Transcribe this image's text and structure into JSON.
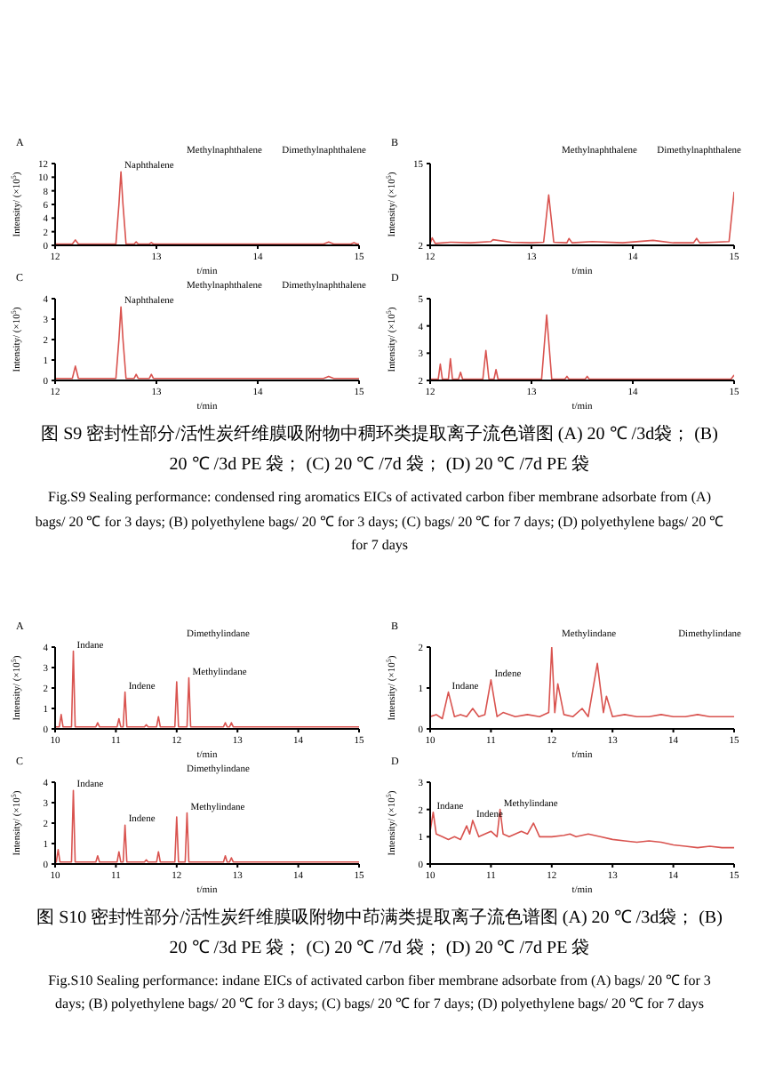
{
  "chart_data": [
    {
      "type": "line",
      "title": "A",
      "xlabel": "t/min",
      "ylabel": "Intensity/ (×10$^{5}$)",
      "color": "#d9534f",
      "xlim": [
        12,
        15
      ],
      "xticks": [
        12,
        13,
        14,
        15
      ],
      "ylim": [
        0,
        12
      ],
      "yticks": [
        0,
        2,
        4,
        6,
        8,
        10,
        12
      ],
      "x": [
        12,
        12.1,
        12.17,
        12.2,
        12.23,
        12.4,
        12.6,
        12.63,
        12.65,
        12.67,
        12.7,
        12.78,
        12.8,
        12.82,
        12.93,
        12.95,
        12.97,
        13.3,
        13.7,
        14.2,
        14.65,
        14.7,
        14.75,
        14.92,
        14.95,
        14.98,
        15
      ],
      "values": [
        0.2,
        0.2,
        0.2,
        0.8,
        0.2,
        0.2,
        0.2,
        6,
        10.8,
        6,
        0.2,
        0.2,
        0.5,
        0.2,
        0.2,
        0.4,
        0.2,
        0.2,
        0.2,
        0.2,
        0.2,
        0.5,
        0.2,
        0.2,
        0.4,
        0.2,
        0.2
      ],
      "annotations": [
        {
          "text": "Naphthalene",
          "x": 12.65,
          "y": 10.8
        },
        "Methylnaphthalene",
        "Dimethylnaphthalene"
      ]
    },
    {
      "type": "line",
      "title": "B",
      "xlabel": "t/min",
      "ylabel": "Intensity/ (×10$^{5}$)",
      "color": "#d9534f",
      "xlim": [
        12,
        15
      ],
      "xticks": [
        12,
        13,
        14,
        15
      ],
      "ylim": [
        2,
        15
      ],
      "yticks": [
        2,
        15
      ],
      "x": [
        12,
        12.02,
        12.05,
        12.2,
        12.4,
        12.6,
        12.62,
        12.8,
        13,
        13.12,
        13.17,
        13.22,
        13.35,
        13.37,
        13.4,
        13.6,
        13.9,
        14.2,
        14.4,
        14.6,
        14.63,
        14.66,
        14.8,
        14.95,
        15
      ],
      "values": [
        2.3,
        3.2,
        2.3,
        2.5,
        2.4,
        2.6,
        2.9,
        2.5,
        2.4,
        2.5,
        10,
        2.5,
        2.4,
        3.1,
        2.4,
        2.6,
        2.4,
        2.8,
        2.4,
        2.4,
        3.1,
        2.4,
        2.5,
        2.6,
        10.5
      ],
      "annotations": [
        "Methylnaphthalene",
        "Dimethylnaphthalene"
      ]
    },
    {
      "type": "line",
      "title": "C",
      "xlabel": "t/min",
      "ylabel": "Intensity/ (×10$^{5}$)",
      "color": "#d9534f",
      "xlim": [
        12,
        15
      ],
      "xticks": [
        12,
        13,
        14,
        15
      ],
      "ylim": [
        0,
        4
      ],
      "yticks": [
        0,
        1,
        2,
        3,
        4
      ],
      "x": [
        12,
        12.1,
        12.17,
        12.2,
        12.23,
        12.4,
        12.6,
        12.63,
        12.65,
        12.67,
        12.7,
        12.78,
        12.8,
        12.82,
        12.93,
        12.95,
        12.97,
        13.3,
        13.7,
        14.2,
        14.65,
        14.7,
        14.75,
        14.92,
        14.95,
        15
      ],
      "values": [
        0.1,
        0.1,
        0.1,
        0.7,
        0.1,
        0.1,
        0.1,
        2,
        3.6,
        2,
        0.1,
        0.1,
        0.3,
        0.1,
        0.1,
        0.3,
        0.1,
        0.1,
        0.1,
        0.1,
        0.1,
        0.2,
        0.1,
        0.1,
        0.1,
        0.1
      ],
      "annotations": [
        {
          "text": "Naphthalene",
          "x": 12.65,
          "y": 3.6
        },
        "Methylnaphthalene",
        "Dimethylnaphthalene"
      ]
    },
    {
      "type": "line",
      "title": "D",
      "xlabel": "t/min",
      "ylabel": "Intensity/ (×10$^{5}$)",
      "color": "#d9534f",
      "xlim": [
        12,
        15
      ],
      "xticks": [
        12,
        13,
        14,
        15
      ],
      "ylim": [
        2,
        5
      ],
      "yticks": [
        2,
        3,
        4,
        5
      ],
      "x": [
        12,
        12.08,
        12.1,
        12.12,
        12.18,
        12.2,
        12.22,
        12.28,
        12.3,
        12.32,
        12.52,
        12.55,
        12.58,
        12.63,
        12.65,
        12.67,
        13.1,
        13.15,
        13.2,
        13.33,
        13.35,
        13.37,
        13.53,
        13.55,
        13.57,
        14.3,
        14.97,
        15
      ],
      "values": [
        2.05,
        2.05,
        2.6,
        2.05,
        2.05,
        2.8,
        2.05,
        2.05,
        2.3,
        2.05,
        2.05,
        3.1,
        2.05,
        2.05,
        2.4,
        2.05,
        2.05,
        4.4,
        2.05,
        2.05,
        2.15,
        2.05,
        2.05,
        2.15,
        2.05,
        2.05,
        2.05,
        2.2
      ]
    },
    {
      "type": "other",
      "annotations": [
        "图 S9 密封性部分/活性炭纤维膜吸附物中稠环类提取离子流色谱图 (A) 20 ℃ /3d袋； (B) 20 ℃ /3d PE 袋； (C) 20 ℃ /7d 袋； (D) 20 ℃ /7d PE 袋",
        "Fig.S9 Sealing performance: condensed ring aromatics EICs of activated carbon fiber membrane adsorbate from (A) bags/ 20 ℃ for 3 days; (B) polyethylene bags/ 20 ℃ for 3 days; (C) bags/ 20 ℃ for 7 days; (D) polyethylene bags/ 20 ℃ for 7 days"
      ]
    },
    {
      "type": "line",
      "title": "A",
      "xlabel": "t/min",
      "ylabel": "Intensity/ (×10$^{5}$)",
      "color": "#d9534f",
      "xlim": [
        10,
        15
      ],
      "xticks": [
        10,
        11,
        12,
        13,
        14,
        15
      ],
      "ylim": [
        0,
        4
      ],
      "yticks": [
        0,
        1,
        2,
        3,
        4
      ],
      "x": [
        10,
        10.07,
        10.1,
        10.13,
        10.27,
        10.3,
        10.33,
        10.67,
        10.7,
        10.73,
        11.02,
        11.05,
        11.08,
        11.12,
        11.15,
        11.18,
        11.47,
        11.5,
        11.53,
        11.67,
        11.7,
        11.73,
        11.97,
        12,
        12.03,
        12.17,
        12.2,
        12.23,
        12.77,
        12.8,
        12.83,
        12.87,
        12.9,
        12.93,
        13.5,
        14.2,
        15
      ],
      "values": [
        0.1,
        0.1,
        0.7,
        0.1,
        0.1,
        3.8,
        0.1,
        0.1,
        0.3,
        0.1,
        0.1,
        0.5,
        0.1,
        0.1,
        1.8,
        0.1,
        0.1,
        0.2,
        0.1,
        0.1,
        0.6,
        0.1,
        0.1,
        2.3,
        0.1,
        0.1,
        2.5,
        0.1,
        0.1,
        0.3,
        0.1,
        0.1,
        0.3,
        0.1,
        0.1,
        0.1,
        0.1
      ],
      "annotations": [
        {
          "text": "Indane",
          "x": 10.3,
          "y": 3.8
        },
        {
          "text": "Indene",
          "x": 11.15,
          "y": 1.8
        },
        {
          "text": "Methylindane",
          "x": 12.2,
          "y": 2.5
        },
        "Dimethylindane"
      ]
    },
    {
      "type": "line",
      "title": "B",
      "xlabel": "t/min",
      "ylabel": "Intensity/ (×10$^{5}$)",
      "color": "#d9534f",
      "xlim": [
        10,
        15
      ],
      "xticks": [
        10,
        11,
        12,
        13,
        14,
        15
      ],
      "ylim": [
        0,
        2
      ],
      "yticks": [
        0,
        1,
        2
      ],
      "x": [
        10,
        10.1,
        10.2,
        10.3,
        10.4,
        10.5,
        10.6,
        10.7,
        10.8,
        10.9,
        11,
        11.1,
        11.2,
        11.4,
        11.6,
        11.8,
        11.95,
        12,
        12.05,
        12.1,
        12.2,
        12.35,
        12.5,
        12.6,
        12.75,
        12.85,
        12.9,
        13,
        13.2,
        13.4,
        13.6,
        13.8,
        14,
        14.2,
        14.4,
        14.6,
        14.8,
        15
      ],
      "values": [
        0.3,
        0.35,
        0.25,
        0.9,
        0.3,
        0.35,
        0.3,
        0.5,
        0.3,
        0.35,
        1.2,
        0.3,
        0.4,
        0.3,
        0.35,
        0.3,
        0.4,
        2,
        0.4,
        1.1,
        0.35,
        0.3,
        0.5,
        0.3,
        1.6,
        0.4,
        0.8,
        0.3,
        0.35,
        0.3,
        0.3,
        0.35,
        0.3,
        0.3,
        0.35,
        0.3,
        0.3,
        0.3
      ],
      "annotations": [
        {
          "text": "Indane",
          "x": 10.3,
          "y": 0.9
        },
        {
          "text": "Indene",
          "x": 11,
          "y": 1.2
        },
        "Methylindane",
        "Dimethylindane"
      ]
    },
    {
      "type": "line",
      "title": "C",
      "xlabel": "t/min",
      "ylabel": "Intensity/ (×10$^{5}$)",
      "color": "#d9534f",
      "xlim": [
        10,
        15
      ],
      "xticks": [
        10,
        11,
        12,
        13,
        14,
        15
      ],
      "ylim": [
        0,
        4
      ],
      "yticks": [
        0,
        1,
        2,
        3,
        4
      ],
      "x": [
        10,
        10.02,
        10.05,
        10.08,
        10.27,
        10.3,
        10.33,
        10.67,
        10.7,
        10.73,
        11.02,
        11.05,
        11.08,
        11.12,
        11.15,
        11.18,
        11.47,
        11.5,
        11.53,
        11.67,
        11.7,
        11.73,
        11.97,
        12,
        12.03,
        12.14,
        12.17,
        12.2,
        12.77,
        12.8,
        12.83,
        12.87,
        12.9,
        12.93,
        13.5,
        14.2,
        15
      ],
      "values": [
        0.1,
        0.1,
        0.7,
        0.1,
        0.1,
        3.6,
        0.1,
        0.1,
        0.4,
        0.1,
        0.1,
        0.6,
        0.1,
        0.1,
        1.9,
        0.1,
        0.1,
        0.2,
        0.1,
        0.1,
        0.6,
        0.1,
        0.1,
        2.3,
        0.1,
        0.1,
        2.5,
        0.1,
        0.1,
        0.4,
        0.1,
        0.1,
        0.3,
        0.1,
        0.1,
        0.1,
        0.1
      ],
      "annotations": [
        {
          "text": "Indane",
          "x": 10.3,
          "y": 3.6
        },
        {
          "text": "Indene",
          "x": 11.15,
          "y": 1.9
        },
        {
          "text": "Methylindane",
          "x": 12.17,
          "y": 2.5
        },
        "Dimethylindane"
      ]
    },
    {
      "type": "line",
      "title": "D",
      "xlabel": "t/min",
      "ylabel": "Intensity/ (×10$^{5}$)",
      "color": "#d9534f",
      "xlim": [
        10,
        15
      ],
      "xticks": [
        10,
        11,
        12,
        13,
        14,
        15
      ],
      "ylim": [
        0,
        3
      ],
      "yticks": [
        0,
        1,
        2,
        3
      ],
      "x": [
        10,
        10.05,
        10.1,
        10.2,
        10.3,
        10.4,
        10.5,
        10.6,
        10.65,
        10.7,
        10.8,
        10.9,
        11,
        11.1,
        11.15,
        11.2,
        11.3,
        11.5,
        11.6,
        11.7,
        11.8,
        12,
        12.2,
        12.3,
        12.4,
        12.6,
        12.8,
        13,
        13.2,
        13.4,
        13.6,
        13.8,
        14,
        14.2,
        14.4,
        14.6,
        14.8,
        15
      ],
      "values": [
        1.2,
        1.9,
        1.1,
        1,
        0.9,
        1,
        0.9,
        1.4,
        1.1,
        1.6,
        1,
        1.1,
        1.2,
        1,
        2,
        1.1,
        1,
        1.2,
        1.1,
        1.5,
        1,
        1,
        1.05,
        1.1,
        1,
        1.1,
        1,
        0.9,
        0.85,
        0.8,
        0.85,
        0.8,
        0.7,
        0.65,
        0.6,
        0.65,
        0.6,
        0.6
      ],
      "annotations": [
        {
          "text": "Indane",
          "x": 10.05,
          "y": 1.9
        },
        {
          "text": "Indene",
          "x": 10.7,
          "y": 1.6
        },
        {
          "text": "Methylindane",
          "x": 11.15,
          "y": 2
        }
      ]
    },
    {
      "type": "other",
      "annotations": [
        "图 S10 密封性部分/活性炭纤维膜吸附物中茚满类提取离子流色谱图 (A) 20 ℃ /3d袋； (B) 20 ℃ /3d PE 袋； (C) 20 ℃ /7d 袋； (D) 20 ℃ /7d PE 袋",
        "Fig.S10 Sealing performance: indane EICs of activated carbon fiber membrane adsorbate from (A) bags/ 20 ℃ for 3 days; (B) polyethylene bags/ 20 ℃ for 3 days; (C) bags/ 20 ℃ for 7 days; (D) polyethylene bags/ 20 ℃ for 7 days"
      ]
    }
  ]
}
